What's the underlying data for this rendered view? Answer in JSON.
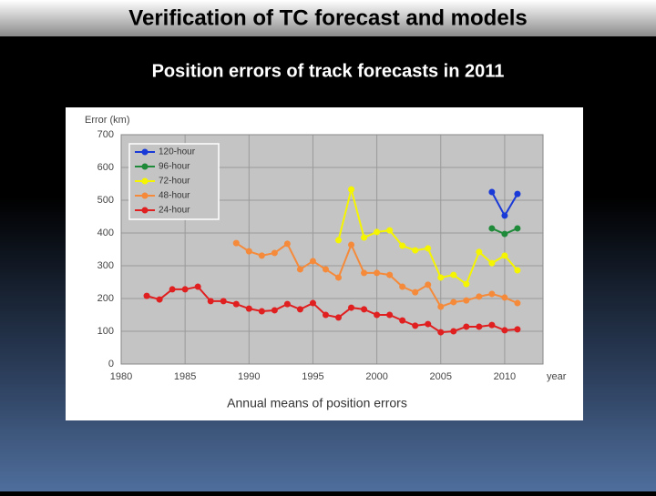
{
  "slide_title": "Verification of TC forecast and models",
  "chart_data": {
    "type": "line",
    "title": "Position errors of track forecasts in 2011",
    "caption": "Annual means of position errors",
    "ylabel": "Error (km)",
    "xlabel": "year",
    "x": [
      1982,
      1983,
      1984,
      1985,
      1986,
      1987,
      1988,
      1989,
      1990,
      1991,
      1992,
      1993,
      1994,
      1995,
      1996,
      1997,
      1998,
      1999,
      2000,
      2001,
      2002,
      2003,
      2004,
      2005,
      2006,
      2007,
      2008,
      2009,
      2010,
      2011
    ],
    "series": [
      {
        "name": "120-hour",
        "color": "#1a3ad8",
        "values": [
          null,
          null,
          null,
          null,
          null,
          null,
          null,
          null,
          null,
          null,
          null,
          null,
          null,
          null,
          null,
          null,
          null,
          null,
          null,
          null,
          null,
          null,
          null,
          null,
          null,
          null,
          null,
          525,
          453,
          519
        ]
      },
      {
        "name": "96-hour",
        "color": "#1f8a3a",
        "values": [
          null,
          null,
          null,
          null,
          null,
          null,
          null,
          null,
          null,
          null,
          null,
          null,
          null,
          null,
          null,
          null,
          null,
          null,
          null,
          null,
          null,
          null,
          null,
          null,
          null,
          null,
          null,
          414,
          397,
          414
        ]
      },
      {
        "name": "72-hour",
        "color": "#f5f500",
        "values": [
          null,
          null,
          null,
          null,
          null,
          null,
          null,
          null,
          null,
          null,
          null,
          null,
          null,
          null,
          null,
          378,
          533,
          386,
          403,
          408,
          361,
          347,
          353,
          264,
          272,
          244,
          342,
          308,
          331,
          286
        ]
      },
      {
        "name": "48-hour",
        "color": "#f58a3a",
        "values": [
          null,
          null,
          null,
          null,
          null,
          null,
          null,
          369,
          344,
          331,
          339,
          367,
          289,
          314,
          289,
          264,
          364,
          278,
          278,
          272,
          236,
          219,
          242,
          175,
          189,
          194,
          206,
          214,
          203,
          186
        ]
      },
      {
        "name": "24-hour",
        "color": "#e02020",
        "values": [
          208,
          197,
          228,
          228,
          236,
          192,
          192,
          183,
          169,
          161,
          164,
          183,
          167,
          186,
          150,
          142,
          172,
          167,
          150,
          150,
          133,
          117,
          122,
          97,
          100,
          114,
          114,
          119,
          103,
          106
        ]
      }
    ],
    "xlim": [
      1980,
      2013
    ],
    "xticks": [
      1980,
      1985,
      1990,
      1995,
      2000,
      2005,
      2010
    ],
    "ylim": [
      0,
      700
    ],
    "yticks": [
      0,
      100,
      200,
      300,
      400,
      500,
      600,
      700
    ],
    "grid": true,
    "legend": "upper left"
  }
}
